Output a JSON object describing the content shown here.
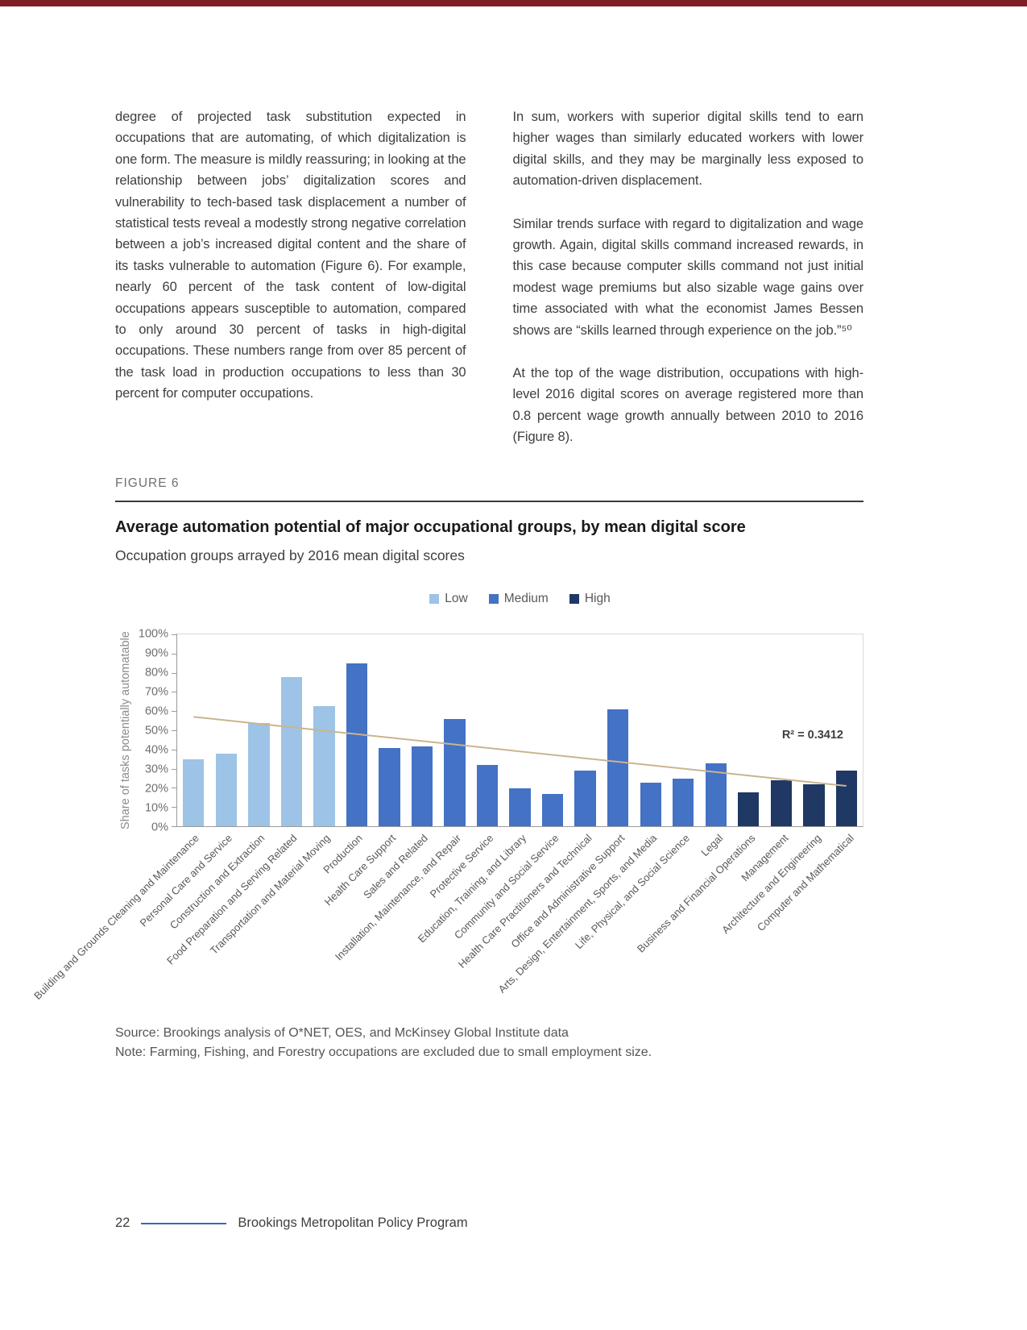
{
  "page": {
    "top_bar_color": "#7d2027",
    "footer": {
      "page_number": "22",
      "program": "Brookings Metropolitan Policy Program"
    }
  },
  "article": {
    "left_column": [
      "degree of projected task substitution expected in occupations that are automating, of which digitalization is one form. The measure is mildly reassuring; in looking at the relationship between jobs’ digitalization scores and vulnerability to tech-based task displacement a number of statistical tests reveal a modestly strong negative correlation between a job’s increased digital content and the share of its tasks vulnerable to automation (Figure 6). For example, nearly 60 percent of the task content of low-digital occupations appears susceptible to automation, compared to only around 30 percent of tasks in high-digital occupations. These numbers range from over 85 percent of the task load in production occupations to less than 30 percent for computer occupations."
    ],
    "right_column": [
      "In sum, workers with superior digital skills tend to earn higher wages than similarly educated workers with lower digital skills, and they may be marginally less exposed to automation-driven displacement.",
      "Similar trends surface with regard to digitalization and wage growth. Again, digital skills command increased rewards, in this case because computer skills command not just initial modest wage premiums but also sizable wage gains over time associated with what the economist James Bessen shows are “skills learned through experience on the job.”⁵⁰",
      "At the top of the wage distribution, occupations with high-level 2016 digital scores on average registered more than 0.8 percent wage growth annually between 2010 to 2016 (Figure 8)."
    ]
  },
  "figure": {
    "label": "FIGURE 6",
    "title": "Average automation potential of major occupational groups, by mean digital score",
    "subtitle": "Occupation groups arrayed by 2016 mean digital scores",
    "source": "Source: Brookings analysis of O*NET, OES, and McKinsey Global Institute data",
    "note": "Note: Farming, Fishing, and Forestry occupations are excluded due to small employment size."
  },
  "chart_data": {
    "type": "bar",
    "title": "Average automation potential of major occupational groups, by mean digital score",
    "xlabel": "",
    "ylabel": "Share of tasks potentially automatable",
    "ylim": [
      0,
      100
    ],
    "ytick_step": 10,
    "grid": false,
    "legend_position": "top-center",
    "legend": [
      {
        "key": "low",
        "label": "Low",
        "color": "#9dc3e6"
      },
      {
        "key": "medium",
        "label": "Medium",
        "color": "#4472c4"
      },
      {
        "key": "high",
        "label": "High",
        "color": "#1f3864"
      }
    ],
    "categories": [
      "Building and Grounds Cleaning and Maintenance",
      "Personal Care and Service",
      "Construction and Extraction",
      "Food Preparation and Serving Related",
      "Transportation and Material Moving",
      "Production",
      "Health Care Support",
      "Sales and Related",
      "Installation, Maintenance, and Repair",
      "Protective Service",
      "Education, Training, and Library",
      "Community and Social Service",
      "Health Care Practitioners and Technical",
      "Office and Administrative Support",
      "Arts, Design, Entertainment, Sports, and Media",
      "Life, Physical, and Social Science",
      "Legal",
      "Business and Financial Operations",
      "Management",
      "Architecture and Engineering",
      "Computer and Mathematical"
    ],
    "values": [
      35,
      38,
      54,
      78,
      63,
      85,
      41,
      42,
      56,
      32,
      20,
      17,
      29,
      61,
      23,
      25,
      33,
      18,
      24,
      22,
      29
    ],
    "groups": [
      "low",
      "low",
      "low",
      "low",
      "low",
      "medium",
      "medium",
      "medium",
      "medium",
      "medium",
      "medium",
      "medium",
      "medium",
      "medium",
      "medium",
      "medium",
      "medium",
      "high",
      "high",
      "high",
      "high"
    ],
    "trendline": {
      "color": "#c9b58f",
      "start_value": 57,
      "end_value": 21,
      "label": "R² = 0.3412"
    }
  }
}
